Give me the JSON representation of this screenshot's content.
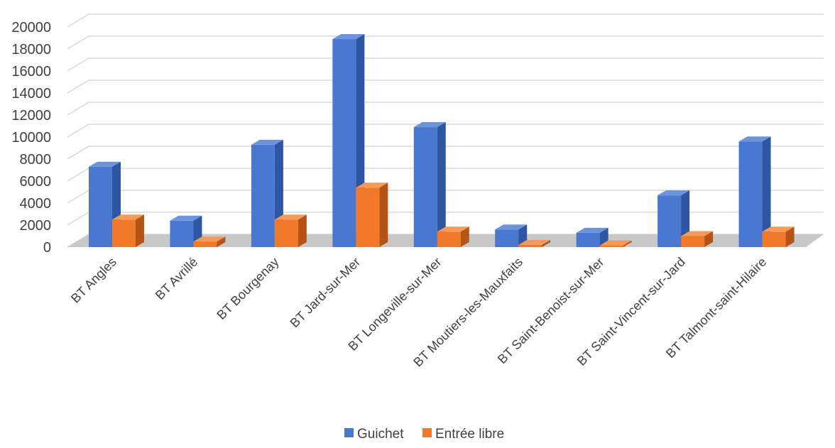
{
  "chart_data": {
    "type": "bar",
    "categories": [
      "BT Angles",
      "BT Avrillé",
      "BT Bourgenay",
      "BT Jard-sur-Mer",
      "BT Longeville-sur-Mer",
      "BT Moutiers-les-Mauxfaits",
      "BT Saint-Benoist-sur-Mer",
      "BT Saint-Vincent-sur-Jard",
      "BT Talmont-saint-Hilaire"
    ],
    "series": [
      {
        "name": "Guichet",
        "values": [
          7300,
          2400,
          9300,
          18900,
          10900,
          1600,
          1300,
          4700,
          9600
        ]
      },
      {
        "name": "Entrée libre",
        "values": [
          2500,
          500,
          2500,
          5400,
          1400,
          200,
          150,
          1000,
          1400
        ]
      }
    ],
    "yticks": [
      "0",
      "2000",
      "4000",
      "6000",
      "8000",
      "10000",
      "12000",
      "14000",
      "16000",
      "18000",
      "20000"
    ],
    "ylim": [
      0,
      20000
    ],
    "grid": true,
    "legend_position": "bottom",
    "colors": {
      "Guichet": {
        "front": "#4a78d0",
        "side": "#2f56a3",
        "top": "#6d93db"
      },
      "Entrée libre": {
        "front": "#f07a2a",
        "side": "#b65416",
        "top": "#f59a5a"
      },
      "grid": "#d9d9d9",
      "floor": "#c8c8c8"
    }
  }
}
